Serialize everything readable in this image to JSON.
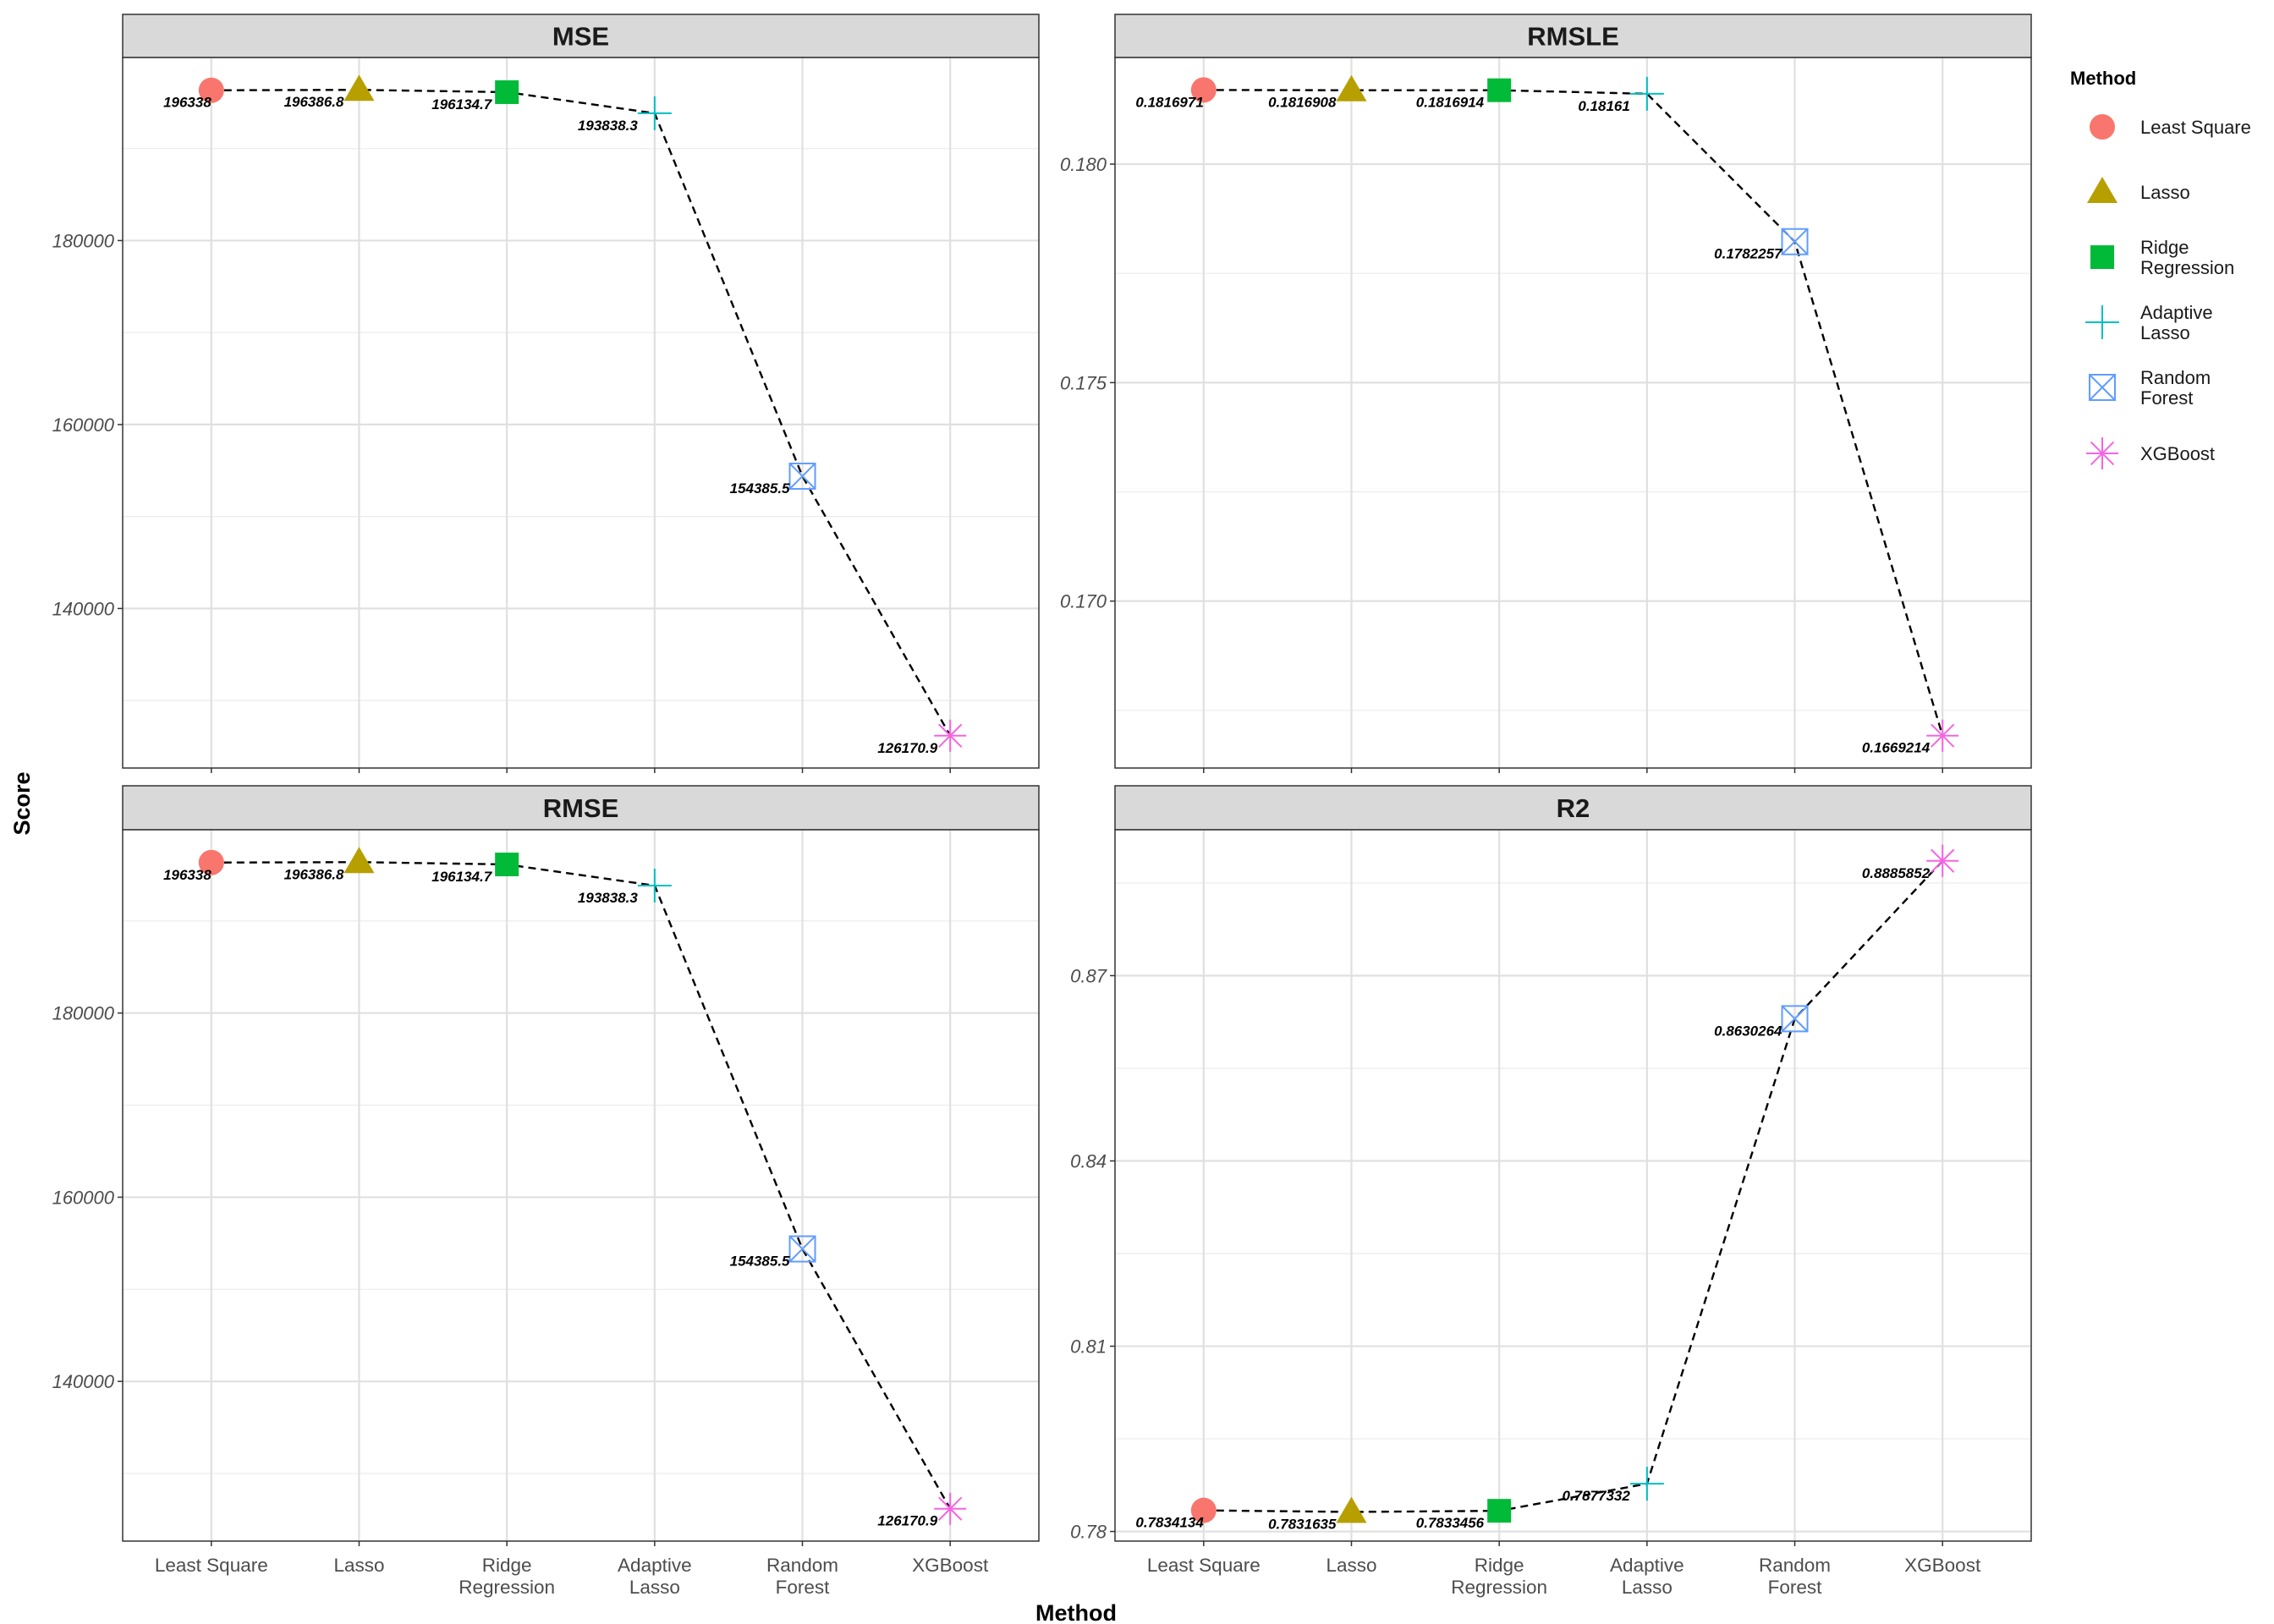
{
  "x_axis_title": "Method",
  "y_axis_title": "Score",
  "legend": {
    "title": "Method",
    "items": [
      {
        "lines": [
          "Least Square"
        ],
        "color": "#F8766D",
        "shape": "circle"
      },
      {
        "lines": [
          "Lasso"
        ],
        "color": "#B79F00",
        "shape": "triangle"
      },
      {
        "lines": [
          "Ridge",
          "Regression"
        ],
        "color": "#00BA38",
        "shape": "square"
      },
      {
        "lines": [
          "Adaptive",
          "Lasso"
        ],
        "color": "#00BFC4",
        "shape": "plus"
      },
      {
        "lines": [
          "Random",
          "Forest"
        ],
        "color": "#619CFF",
        "shape": "square-cross"
      },
      {
        "lines": [
          "XGBoost"
        ],
        "color": "#F564E3",
        "shape": "asterisk"
      }
    ]
  },
  "chart_data": [
    {
      "type": "line",
      "title": "MSE",
      "categories": [
        [
          "Least Square"
        ],
        [
          "Lasso"
        ],
        [
          "Ridge",
          "Regression"
        ],
        [
          "Adaptive",
          "Lasso"
        ],
        [
          "Random",
          "Forest"
        ],
        [
          "XGBoost"
        ]
      ],
      "values": [
        196338,
        196386.8,
        196134.7,
        193838.3,
        154385.5,
        126170.9
      ],
      "labels": [
        "196338",
        "196386.8",
        "196134.7",
        "193838.3",
        "154385.5",
        "126170.9"
      ],
      "yticks": [
        140000,
        160000,
        180000
      ],
      "ytick_labels": [
        "140000",
        "160000",
        "180000"
      ],
      "ylim": [
        122657.2,
        199900.5
      ],
      "grid": true
    },
    {
      "type": "line",
      "title": "RMSLE",
      "categories": [
        [
          "Least Square"
        ],
        [
          "Lasso"
        ],
        [
          "Ridge",
          "Regression"
        ],
        [
          "Adaptive",
          "Lasso"
        ],
        [
          "Random",
          "Forest"
        ],
        [
          "XGBoost"
        ]
      ],
      "values": [
        0.1816971,
        0.1816908,
        0.1816914,
        0.18161,
        0.1782257,
        0.1669214
      ],
      "labels": [
        "0.1816971",
        "0.1816908",
        "0.1816914",
        "0.18161",
        "0.1782257",
        "0.1669214"
      ],
      "yticks": [
        0.17,
        0.175,
        0.18
      ],
      "ytick_labels": [
        "0.170",
        "0.175",
        "0.180"
      ],
      "ylim": [
        0.16618,
        0.18244
      ],
      "grid": true
    },
    {
      "type": "line",
      "title": "RMSE",
      "categories": [
        [
          "Least Square"
        ],
        [
          "Lasso"
        ],
        [
          "Ridge",
          "Regression"
        ],
        [
          "Adaptive",
          "Lasso"
        ],
        [
          "Random",
          "Forest"
        ],
        [
          "XGBoost"
        ]
      ],
      "values": [
        196338,
        196386.8,
        196134.7,
        193838.3,
        154385.5,
        126170.9
      ],
      "labels": [
        "196338",
        "196386.8",
        "196134.7",
        "193838.3",
        "154385.5",
        "126170.9"
      ],
      "yticks": [
        140000,
        160000,
        180000
      ],
      "ytick_labels": [
        "140000",
        "160000",
        "180000"
      ],
      "ylim": [
        122657.2,
        199900.5
      ],
      "grid": true
    },
    {
      "type": "line",
      "title": "R2",
      "categories": [
        [
          "Least Square"
        ],
        [
          "Lasso"
        ],
        [
          "Ridge",
          "Regression"
        ],
        [
          "Adaptive",
          "Lasso"
        ],
        [
          "Random",
          "Forest"
        ],
        [
          "XGBoost"
        ]
      ],
      "values": [
        0.7834134,
        0.7831635,
        0.7833456,
        0.7877332,
        0.8630264,
        0.8885852
      ],
      "labels": [
        "0.7834134",
        "0.7831635",
        "0.7833456",
        "0.7877332",
        "0.8630264",
        "0.8885852"
      ],
      "yticks": [
        0.78,
        0.81,
        0.84,
        0.87
      ],
      "ytick_labels": [
        "0.78",
        "0.81",
        "0.84",
        "0.87"
      ],
      "ylim": [
        0.77844,
        0.89362
      ],
      "grid": true
    }
  ]
}
